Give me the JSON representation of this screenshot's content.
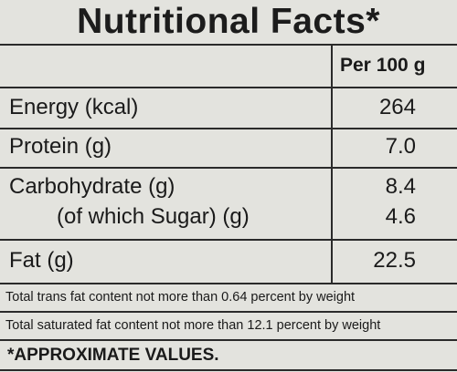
{
  "title": "Nutritional Facts*",
  "column_header": "Per 100 g",
  "rows": [
    {
      "label": "Energy (kcal)",
      "value": "264"
    },
    {
      "label": "Protein (g)",
      "value": "7.0"
    },
    {
      "label": "Carbohydrate (g)",
      "value": "8.4"
    },
    {
      "label": "(of which Sugar) (g)",
      "value": "4.6"
    },
    {
      "label": "Fat (g)",
      "value": "22.5"
    }
  ],
  "notes": [
    "Total trans fat content not more than 0.64 percent by weight",
    "Total saturated fat content not more than 12.1 percent by weight"
  ],
  "footer": "*APPROXIMATE VALUES."
}
